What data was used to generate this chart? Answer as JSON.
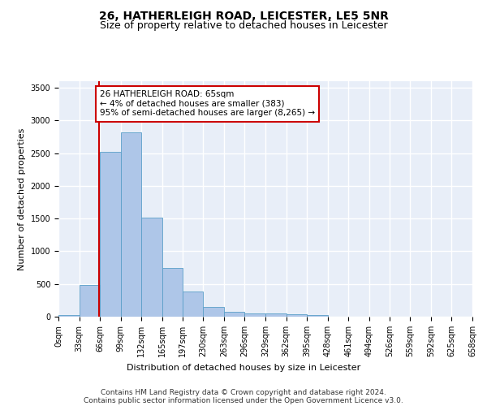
{
  "title_line1": "26, HATHERLEIGH ROAD, LEICESTER, LE5 5NR",
  "title_line2": "Size of property relative to detached houses in Leicester",
  "xlabel": "Distribution of detached houses by size in Leicester",
  "ylabel": "Number of detached properties",
  "bar_color": "#aec6e8",
  "bar_edge_color": "#5a9fc8",
  "background_color": "#e8eef8",
  "grid_color": "#ffffff",
  "bin_edges": [
    0,
    33,
    66,
    99,
    132,
    165,
    197,
    230,
    263,
    296,
    329,
    362,
    395,
    428,
    461,
    494,
    526,
    559,
    592,
    625,
    658
  ],
  "bin_labels": [
    "0sqm",
    "33sqm",
    "66sqm",
    "99sqm",
    "132sqm",
    "165sqm",
    "197sqm",
    "230sqm",
    "263sqm",
    "296sqm",
    "329sqm",
    "362sqm",
    "395sqm",
    "428sqm",
    "461sqm",
    "494sqm",
    "526sqm",
    "559sqm",
    "592sqm",
    "625sqm",
    "658sqm"
  ],
  "bar_heights": [
    20,
    480,
    2520,
    2820,
    1520,
    750,
    390,
    145,
    80,
    55,
    55,
    40,
    20,
    0,
    0,
    0,
    0,
    0,
    0,
    0
  ],
  "vline_x": 65,
  "vline_color": "#cc0000",
  "annotation_text": "26 HATHERLEIGH ROAD: 65sqm\n← 4% of detached houses are smaller (383)\n95% of semi-detached houses are larger (8,265) →",
  "annotation_box_color": "#ffffff",
  "annotation_box_edge": "#cc0000",
  "ylim": [
    0,
    3600
  ],
  "yticks": [
    0,
    500,
    1000,
    1500,
    2000,
    2500,
    3000,
    3500
  ],
  "footer_line1": "Contains HM Land Registry data © Crown copyright and database right 2024.",
  "footer_line2": "Contains public sector information licensed under the Open Government Licence v3.0.",
  "title_fontsize": 10,
  "subtitle_fontsize": 9,
  "axis_label_fontsize": 8,
  "tick_fontsize": 7,
  "annotation_fontsize": 7.5,
  "footer_fontsize": 6.5
}
